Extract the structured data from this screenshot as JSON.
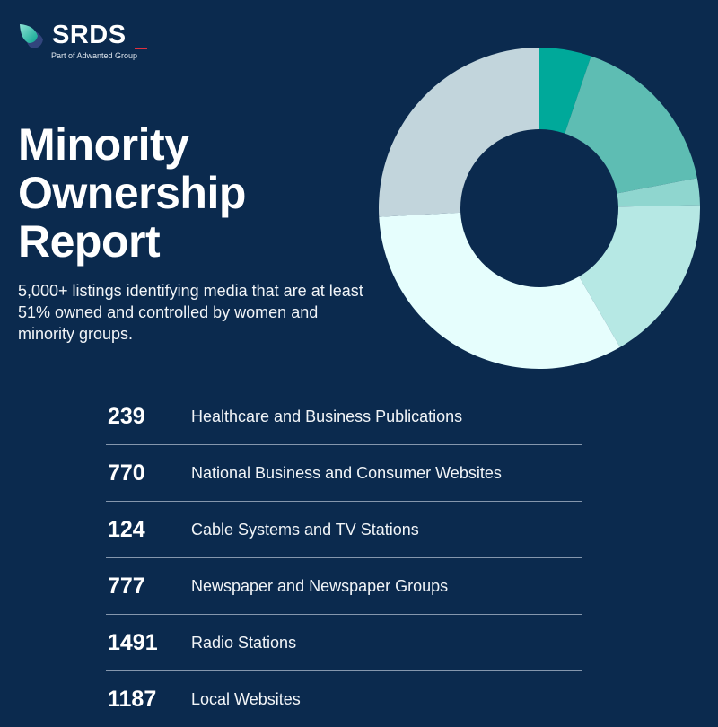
{
  "logo": {
    "name": "SRDS",
    "tagline": "Part of Adwanted Group"
  },
  "title_lines": [
    "Minority",
    "Ownership",
    "Report"
  ],
  "subtitle": "5,000+ listings identifying media that are at least 51% owned and controlled by women and minority groups.",
  "colors": {
    "background": "#0b2a4e",
    "accent": "#e0313f"
  },
  "chart_data": {
    "type": "pie",
    "donut": true,
    "start": "top, clockwise",
    "categories": [
      "Healthcare and Business Publications",
      "National Business and Consumer Websites",
      "Cable Systems and TV Stations",
      "Newspaper and Newspaper Groups",
      "Radio Stations",
      "Local Websites"
    ],
    "values": [
      239,
      770,
      124,
      777,
      1491,
      1187
    ],
    "colors": [
      "#00a99a",
      "#5ebdb3",
      "#8fd6cf",
      "#b6e8e4",
      "#e6fefd",
      "#c2d5dc"
    ]
  },
  "rows": [
    {
      "count": "239",
      "label": "Healthcare and Business Publications"
    },
    {
      "count": "770",
      "label": "National Business and Consumer Websites"
    },
    {
      "count": "124",
      "label": "Cable Systems and TV Stations"
    },
    {
      "count": "777",
      "label": "Newspaper and Newspaper Groups"
    },
    {
      "count": "1491",
      "label": "Radio Stations"
    },
    {
      "count": "1187",
      "label": "Local Websites"
    }
  ]
}
